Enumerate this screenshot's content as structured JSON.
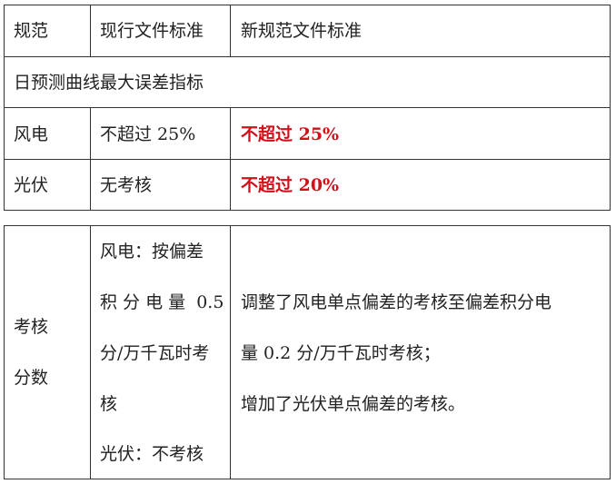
{
  "table1": {
    "header": [
      "规范",
      "现行文件标准",
      "新规范文件标准"
    ],
    "section_title": "日预测曲线最大误差指标",
    "rows": [
      {
        "label": "风电",
        "current": "不超过 25%",
        "new": "不超过 25%"
      },
      {
        "label": "光伏",
        "current": "无考核",
        "new": "不超过 20%"
      }
    ],
    "highlight_color": "#d0101b"
  },
  "table2": {
    "label_lines": [
      "考核",
      "分数"
    ],
    "current_lines": [
      "风电：按偏差",
      "积 分 电 量  0.5",
      "分/万千瓦时考",
      "核",
      "光伏：不考核"
    ],
    "new_lines": [
      "调整了风电单点偏差的考核至偏差积分电",
      "量 0.2 分/万千瓦时考核；",
      "增加了光伏单点偏差的考核。"
    ]
  }
}
